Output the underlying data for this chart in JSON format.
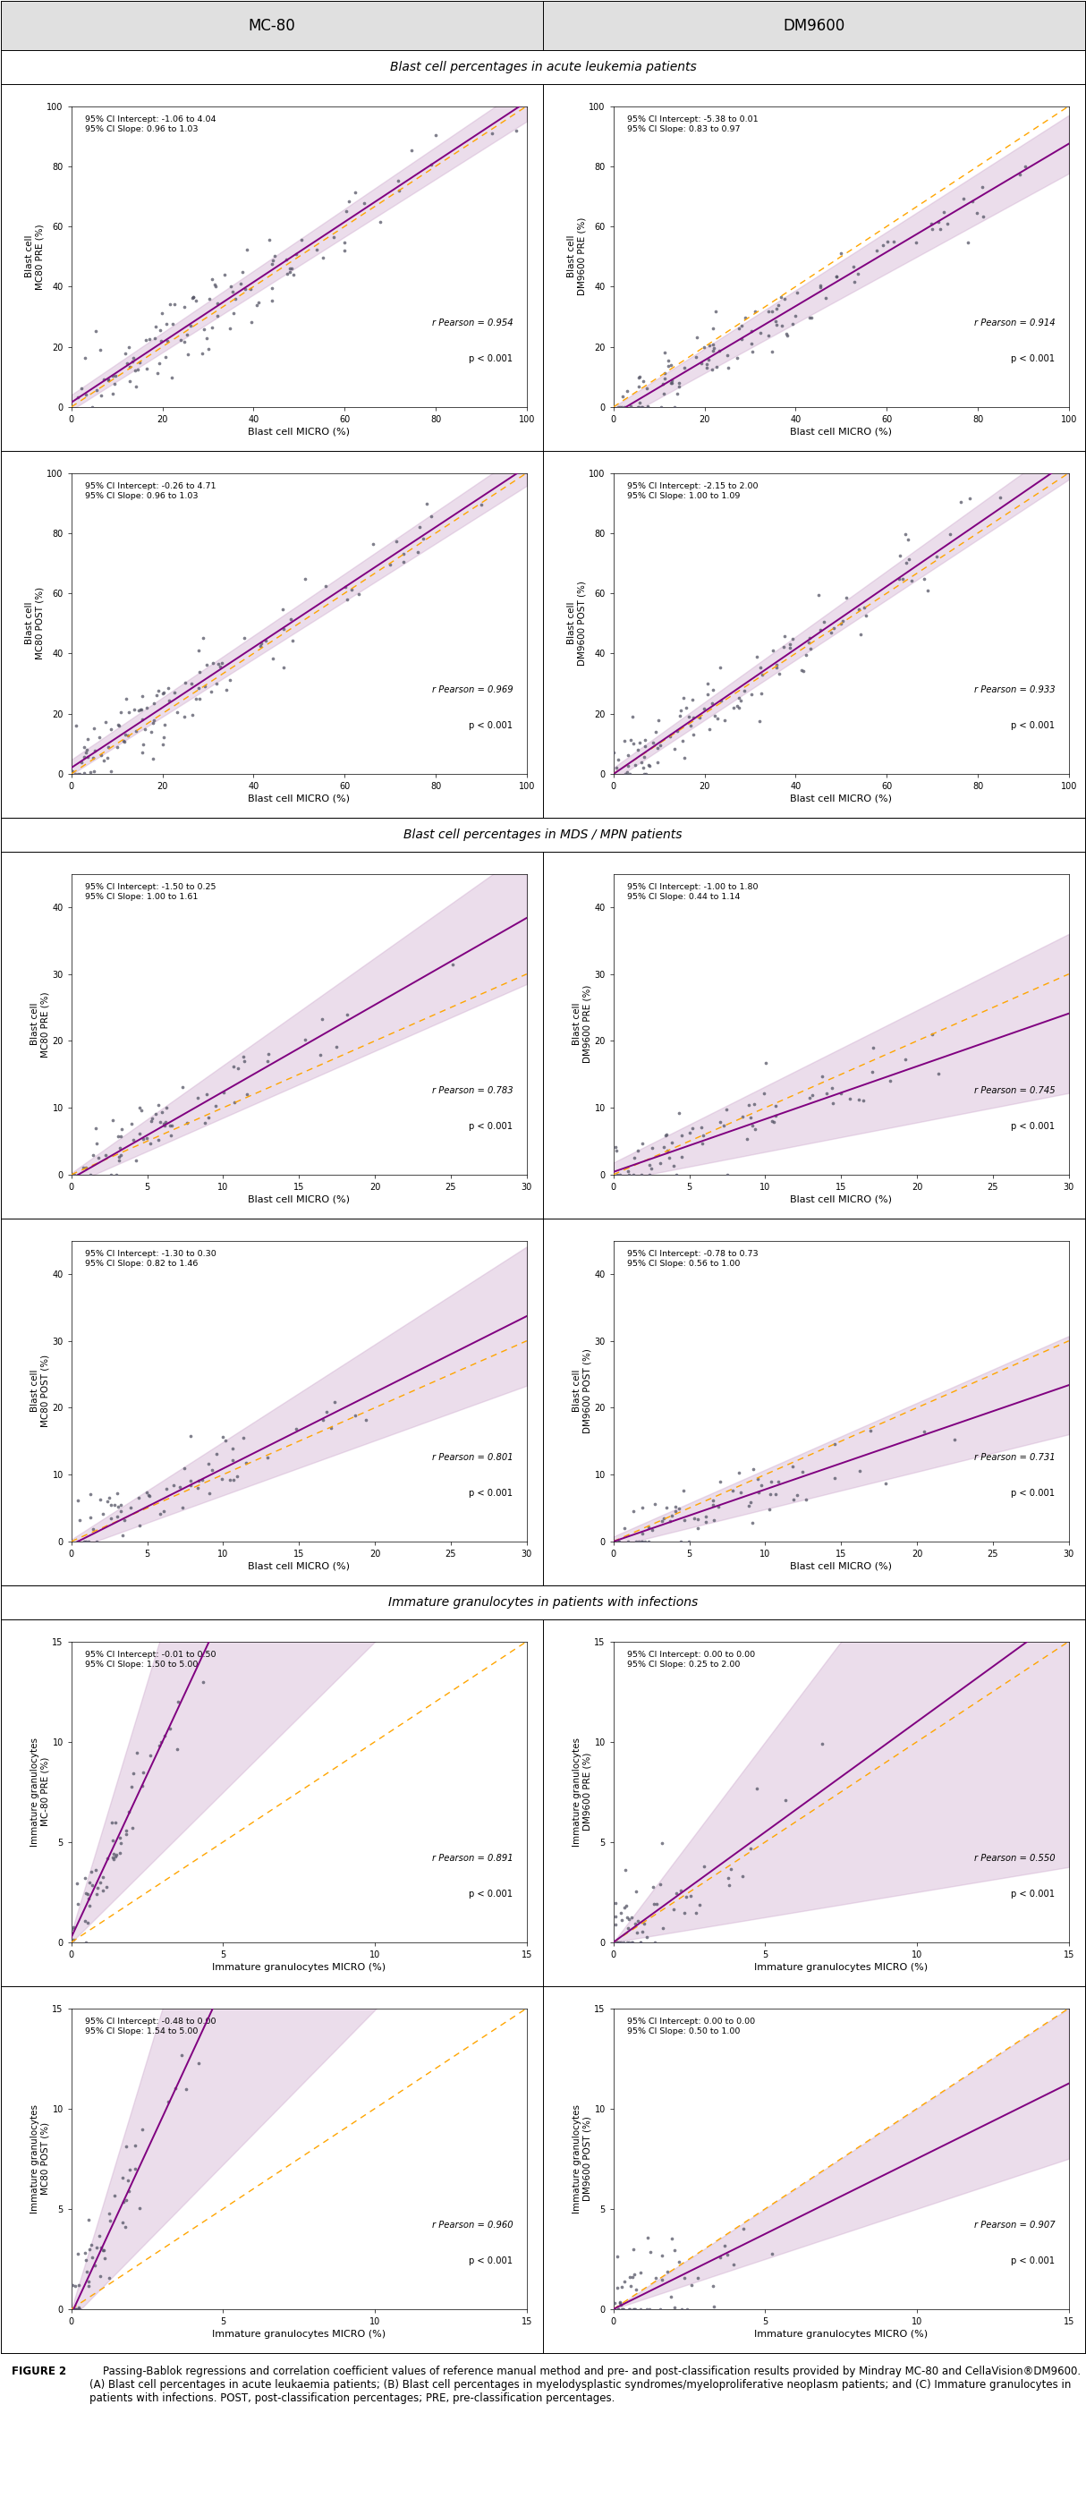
{
  "header_bg": "#e0e0e0",
  "col_headers": [
    "MC-80",
    "DM9600"
  ],
  "section_headers": [
    "Blast cell percentages in acute leukemia patients",
    "Blast cell percentages in MDS / MPN patients",
    "Immature granulocytes in patients with infections"
  ],
  "plots": [
    {
      "xlabel": "Blast cell MICRO (%)",
      "ylabel": "Blast cell\nMC80 PRE (%)",
      "xlim": [
        0,
        100
      ],
      "ylim": [
        0,
        100
      ],
      "xticks": [
        0,
        20,
        40,
        60,
        80,
        100
      ],
      "yticks": [
        0,
        20,
        40,
        60,
        80,
        100
      ],
      "annotation_top": "95% CI Intercept: -1.06 to 4.04\n95% CI Slope: 0.96 to 1.03",
      "r_text": "r Pearson = 0.954",
      "p_text": "p < 0.001",
      "reg_slope": 1.0,
      "reg_intercept": 1.5,
      "ci_slope_lo": 0.96,
      "ci_slope_hi": 1.03,
      "ci_int_lo": -1.06,
      "ci_int_hi": 4.04
    },
    {
      "xlabel": "Blast cell MICRO (%)",
      "ylabel": "Blast cell\nDM9600 PRE (%)",
      "xlim": [
        0,
        100
      ],
      "ylim": [
        0,
        100
      ],
      "xticks": [
        0,
        20,
        40,
        60,
        80,
        100
      ],
      "yticks": [
        0,
        20,
        40,
        60,
        80,
        100
      ],
      "annotation_top": "95% CI Intercept: -5.38 to 0.01\n95% CI Slope: 0.83 to 0.97",
      "r_text": "r Pearson = 0.914",
      "p_text": "p < 0.001",
      "reg_slope": 0.9,
      "reg_intercept": -2.5,
      "ci_slope_lo": 0.83,
      "ci_slope_hi": 0.97,
      "ci_int_lo": -5.38,
      "ci_int_hi": 0.01
    },
    {
      "xlabel": "Blast cell MICRO (%)",
      "ylabel": "Blast cell\nMC80 POST (%)",
      "xlim": [
        0,
        100
      ],
      "ylim": [
        0,
        100
      ],
      "xticks": [
        0,
        20,
        40,
        60,
        80,
        100
      ],
      "yticks": [
        0,
        20,
        40,
        60,
        80,
        100
      ],
      "annotation_top": "95% CI Intercept: -0.26 to 4.71\n95% CI Slope: 0.96 to 1.03",
      "r_text": "r Pearson = 0.969",
      "p_text": "p < 0.001",
      "reg_slope": 1.0,
      "reg_intercept": 2.0,
      "ci_slope_lo": 0.96,
      "ci_slope_hi": 1.03,
      "ci_int_lo": -0.26,
      "ci_int_hi": 4.71
    },
    {
      "xlabel": "Blast cell MICRO (%)",
      "ylabel": "Blast cell\nDM9600 POST (%)",
      "xlim": [
        0,
        100
      ],
      "ylim": [
        0,
        100
      ],
      "xticks": [
        0,
        20,
        40,
        60,
        80,
        100
      ],
      "yticks": [
        0,
        20,
        40,
        60,
        80,
        100
      ],
      "annotation_top": "95% CI Intercept: -2.15 to 2.00\n95% CI Slope: 1.00 to 1.09",
      "r_text": "r Pearson = 0.933",
      "p_text": "p < 0.001",
      "reg_slope": 1.04,
      "reg_intercept": -0.1,
      "ci_slope_lo": 1.0,
      "ci_slope_hi": 1.09,
      "ci_int_lo": -2.15,
      "ci_int_hi": 2.0
    },
    {
      "xlabel": "Blast cell MICRO (%)",
      "ylabel": "Blast cell\nMC80 PRE (%)",
      "xlim": [
        0,
        30
      ],
      "ylim": [
        0,
        45
      ],
      "xticks": [
        0,
        5,
        10,
        15,
        20,
        25,
        30
      ],
      "yticks": [
        0,
        10,
        20,
        30,
        40
      ],
      "annotation_top": "95% CI Intercept: -1.50 to 0.25\n95% CI Slope: 1.00 to 1.61",
      "r_text": "r Pearson = 0.783",
      "p_text": "p < 0.001",
      "reg_slope": 1.3,
      "reg_intercept": -0.6,
      "ci_slope_lo": 1.0,
      "ci_slope_hi": 1.61,
      "ci_int_lo": -1.5,
      "ci_int_hi": 0.25
    },
    {
      "xlabel": "Blast cell MICRO (%)",
      "ylabel": "Blast cell\nDM9600 PRE (%)",
      "xlim": [
        0,
        30
      ],
      "ylim": [
        0,
        45
      ],
      "xticks": [
        0,
        5,
        10,
        15,
        20,
        25,
        30
      ],
      "yticks": [
        0,
        10,
        20,
        30,
        40
      ],
      "annotation_top": "95% CI Intercept: -1.00 to 1.80\n95% CI Slope: 0.44 to 1.14",
      "r_text": "r Pearson = 0.745",
      "p_text": "p < 0.001",
      "reg_slope": 0.79,
      "reg_intercept": 0.4,
      "ci_slope_lo": 0.44,
      "ci_slope_hi": 1.14,
      "ci_int_lo": -1.0,
      "ci_int_hi": 1.8
    },
    {
      "xlabel": "Blast cell MICRO (%)",
      "ylabel": "Blast cell\nMC80 POST (%)",
      "xlim": [
        0,
        30
      ],
      "ylim": [
        0,
        45
      ],
      "xticks": [
        0,
        5,
        10,
        15,
        20,
        25,
        30
      ],
      "yticks": [
        0,
        10,
        20,
        30,
        40
      ],
      "annotation_top": "95% CI Intercept: -1.30 to 0.30\n95% CI Slope: 0.82 to 1.46",
      "r_text": "r Pearson = 0.801",
      "p_text": "p < 0.001",
      "reg_slope": 1.14,
      "reg_intercept": -0.5,
      "ci_slope_lo": 0.82,
      "ci_slope_hi": 1.46,
      "ci_int_lo": -1.3,
      "ci_int_hi": 0.3
    },
    {
      "xlabel": "Blast cell MICRO (%)",
      "ylabel": "Blast cell\nDM9600 POST (%)",
      "xlim": [
        0,
        30
      ],
      "ylim": [
        0,
        45
      ],
      "xticks": [
        0,
        5,
        10,
        15,
        20,
        25,
        30
      ],
      "yticks": [
        0,
        10,
        20,
        30,
        40
      ],
      "annotation_top": "95% CI Intercept: -0.78 to 0.73\n95% CI Slope: 0.56 to 1.00",
      "r_text": "r Pearson = 0.731",
      "p_text": "p < 0.001",
      "reg_slope": 0.78,
      "reg_intercept": -0.02,
      "ci_slope_lo": 0.56,
      "ci_slope_hi": 1.0,
      "ci_int_lo": -0.78,
      "ci_int_hi": 0.73
    },
    {
      "xlabel": "Immature granulocytes MICRO (%)",
      "ylabel": "Immature granulocytes\nMC-80 PRE (%)",
      "xlim": [
        0,
        15
      ],
      "ylim": [
        0,
        15
      ],
      "xticks": [
        0,
        5,
        10,
        15
      ],
      "yticks": [
        0,
        5,
        10,
        15
      ],
      "annotation_top": "95% CI Intercept: -0.01 to 0.50\n95% CI Slope: 1.50 to 5.00",
      "r_text": "r Pearson = 0.891",
      "p_text": "p < 0.001",
      "reg_slope": 3.25,
      "reg_intercept": 0.25,
      "ci_slope_lo": 1.5,
      "ci_slope_hi": 5.0,
      "ci_int_lo": -0.01,
      "ci_int_hi": 0.5
    },
    {
      "xlabel": "Immature granulocytes MICRO (%)",
      "ylabel": "Immature granulocytes\nDM9600 PRE (%)",
      "xlim": [
        0,
        15
      ],
      "ylim": [
        0,
        15
      ],
      "xticks": [
        0,
        5,
        10,
        15
      ],
      "yticks": [
        0,
        5,
        10,
        15
      ],
      "annotation_top": "95% CI Intercept: 0.00 to 0.00\n95% CI Slope: 0.25 to 2.00",
      "r_text": "r Pearson = 0.550",
      "p_text": "p < 0.001",
      "reg_slope": 1.1,
      "reg_intercept": 0.0,
      "ci_slope_lo": 0.25,
      "ci_slope_hi": 2.0,
      "ci_int_lo": 0.0,
      "ci_int_hi": 0.0
    },
    {
      "xlabel": "Immature granulocytes MICRO (%)",
      "ylabel": "Immature granulocytes\nMC80 POST (%)",
      "xlim": [
        0,
        15
      ],
      "ylim": [
        0,
        15
      ],
      "xticks": [
        0,
        5,
        10,
        15
      ],
      "yticks": [
        0,
        5,
        10,
        15
      ],
      "annotation_top": "95% CI Intercept: -0.48 to 0.00\n95% CI Slope: 1.54 to 5.00",
      "r_text": "r Pearson = 0.960",
      "p_text": "p < 0.001",
      "reg_slope": 3.27,
      "reg_intercept": -0.24,
      "ci_slope_lo": 1.54,
      "ci_slope_hi": 5.0,
      "ci_int_lo": -0.48,
      "ci_int_hi": 0.0
    },
    {
      "xlabel": "Immature granulocytes MICRO (%)",
      "ylabel": "Immature granulocytes\nDM9600 POST (%)",
      "xlim": [
        0,
        15
      ],
      "ylim": [
        0,
        15
      ],
      "xticks": [
        0,
        5,
        10,
        15
      ],
      "yticks": [
        0,
        5,
        10,
        15
      ],
      "annotation_top": "95% CI Intercept: 0.00 to 0.00\n95% CI Slope: 0.50 to 1.00",
      "r_text": "r Pearson = 0.907",
      "p_text": "p < 0.001",
      "reg_slope": 0.75,
      "reg_intercept": 0.0,
      "ci_slope_lo": 0.5,
      "ci_slope_hi": 1.0,
      "ci_int_lo": 0.0,
      "ci_int_hi": 0.0
    }
  ],
  "line_color": "#800080",
  "ci_color": "#C8A0C8",
  "dot_color": "#555566",
  "identity_color": "#FFA500",
  "caption_bold": "FIGURE 2",
  "caption_normal": "    Passing-Bablok regressions and correlation coefficient values of reference manual method and pre- and post-classification results provided by Mindray MC-80 and CellaVision®DM9600. (A) Blast cell percentages in acute leukaemia patients; (B) Blast cell percentages in myelodysplastic syndromes/myeloproliferative neoplasm patients; and (C) Immature granulocytes in patients with infections. POST, post-classification percentages; PRE, pre-classification percentages."
}
